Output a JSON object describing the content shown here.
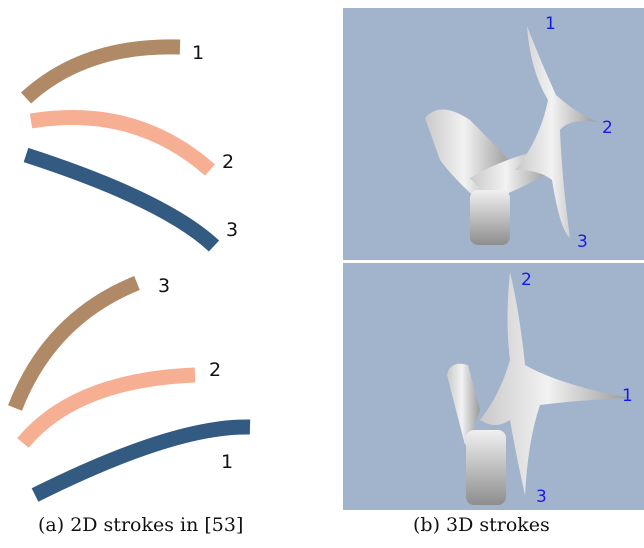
{
  "colors": {
    "brown": "#b08a66",
    "salmon": "#f6af93",
    "navy": "#335a80",
    "panel_bg": "#a2b3cc",
    "label_blue": "#1a1ae6"
  },
  "panel_a": {
    "top_group_labels": [
      "1",
      "2",
      "3"
    ],
    "bottom_group_labels": [
      "3",
      "2",
      "1"
    ],
    "caption": "(a) 2D strokes in [53]"
  },
  "panel_b": {
    "top_view_labels": [
      "1",
      "2",
      "3"
    ],
    "bottom_view_labels": [
      "2",
      "1",
      "3"
    ],
    "caption": "(b) 3D strokes"
  }
}
